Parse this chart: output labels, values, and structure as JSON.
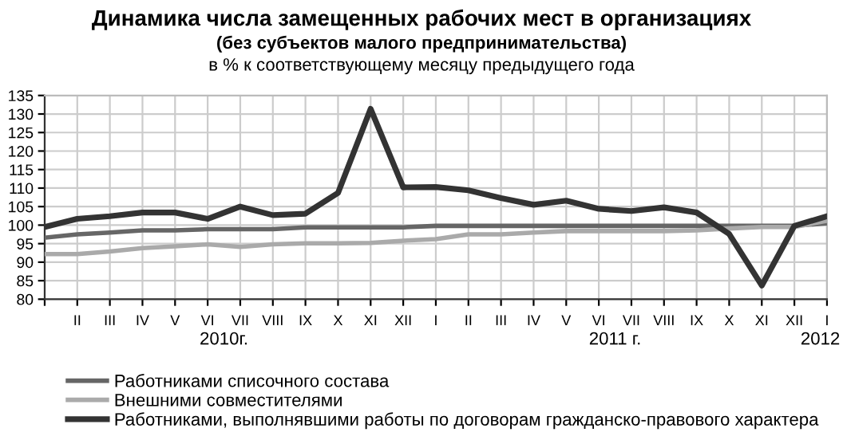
{
  "chart_data": {
    "type": "line",
    "title": "Динамика числа замещенных рабочих мест в организациях",
    "subtitle": "(без субъектов малого предпринимательства)\nв % к соответствующему месяцу предыдущего года",
    "categories": [
      null,
      "II",
      "III",
      "IV",
      "V",
      "VI",
      "VII",
      "VIII",
      "IX",
      "X",
      "XI",
      "XII",
      "I",
      "II",
      "III",
      "IV",
      "V",
      "VI",
      "VII",
      "VIII",
      "IX",
      "X",
      "XI",
      "XII",
      "I"
    ],
    "series": [
      {
        "name": "Работниками списочного состава",
        "color": "#666666",
        "values": [
          96.6,
          97.5,
          98,
          98.6,
          98.6,
          98.9,
          98.9,
          98.9,
          99.4,
          99.4,
          99.4,
          99.4,
          99.8,
          99.8,
          99.8,
          99.8,
          99.8,
          99.8,
          99.8,
          99.8,
          99.8,
          99.8,
          99.8,
          99.8,
          100.5
        ]
      },
      {
        "name": "Внешними совместителями",
        "color": "#aaaaaa",
        "values": [
          92.2,
          92.2,
          92.9,
          93.8,
          94.3,
          94.8,
          94.1,
          94.8,
          95.1,
          95.1,
          95.2,
          95.8,
          96.2,
          97.5,
          97.5,
          98,
          98.4,
          98.4,
          98.4,
          98.4,
          98.6,
          99.1,
          99.5,
          99.5,
          101.2
        ]
      },
      {
        "name": "Работниками, выполнявшими работы по договорам гражданско-правового характера",
        "color": "#333333",
        "values": [
          99.5,
          101.7,
          102.4,
          103.4,
          103.4,
          101.7,
          105,
          102.7,
          103.1,
          108.7,
          131.4,
          110.2,
          110.3,
          109.4,
          107.3,
          105.5,
          106.6,
          104.4,
          103.8,
          104.8,
          103.4,
          97.6,
          83.7,
          99.8,
          102.4
        ]
      }
    ],
    "annotations": [
      "2010г.",
      "2011 г.",
      "2012"
    ],
    "ylim": [
      80,
      135
    ],
    "yticks": [
      80,
      85,
      90,
      95,
      100,
      105,
      110,
      115,
      120,
      125,
      130,
      135
    ],
    "grid": true,
    "legend": "bottom",
    "marker": "none",
    "line_style": "solid"
  }
}
